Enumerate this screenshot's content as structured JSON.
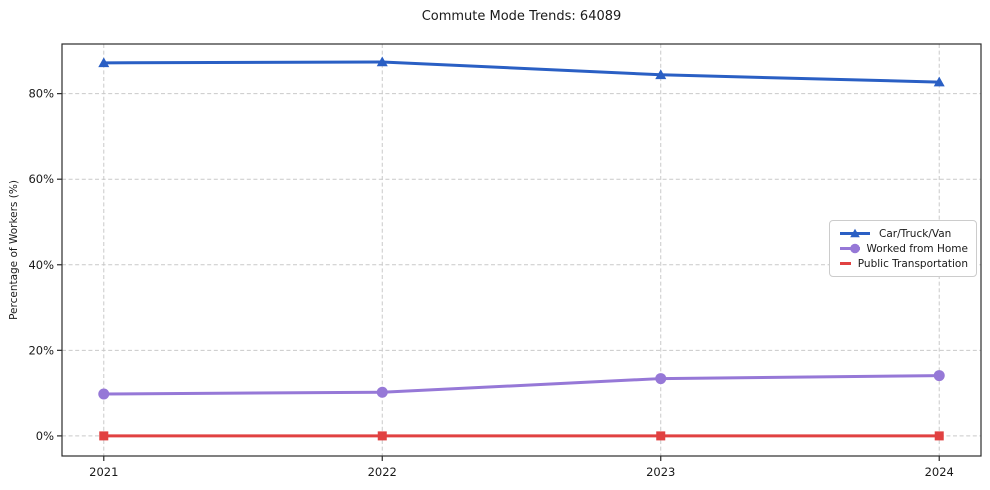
{
  "title": "Commute Mode Trends: 64089",
  "chart_data": {
    "type": "line",
    "title": "Commute Mode Trends: 64089",
    "xlabel": "",
    "ylabel": "Percentage of Workers (%)",
    "categories": [
      "2021",
      "2022",
      "2023",
      "2024"
    ],
    "series": [
      {
        "name": "Car/Truck/Van",
        "values": [
          87.2,
          87.4,
          84.4,
          82.7
        ],
        "color": "#2a5fc4",
        "marker": "triangle"
      },
      {
        "name": "Worked from Home",
        "values": [
          9.8,
          10.2,
          13.4,
          14.1
        ],
        "color": "#9678d7",
        "marker": "circle"
      },
      {
        "name": "Public Transportation",
        "values": [
          0.0,
          0.0,
          0.0,
          0.0
        ],
        "color": "#e14141",
        "marker": "square"
      }
    ],
    "ylim": [
      -4.7,
      91.6
    ],
    "yticks": [
      0,
      20,
      40,
      60,
      80
    ],
    "ytick_labels": [
      "0%",
      "20%",
      "40%",
      "60%",
      "80%"
    ],
    "grid": true,
    "grid_style": "dashed",
    "legend_position": "center right",
    "background_color": "#ffffff",
    "grid_color": "#c9c9c9",
    "spine_color": "#2b2b2b",
    "text_color": "#1a1a1a"
  }
}
